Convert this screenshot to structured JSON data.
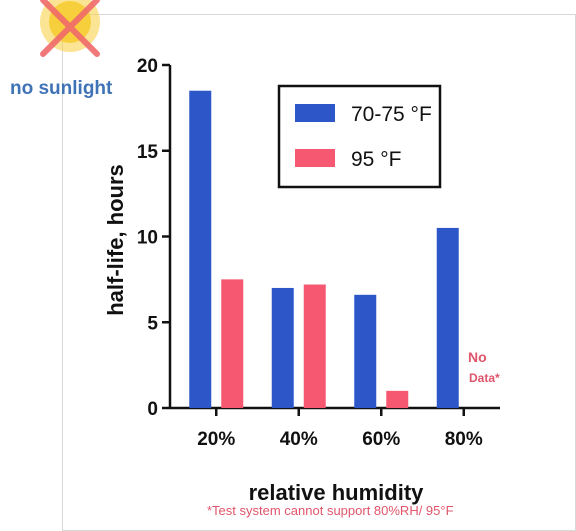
{
  "colors": {
    "series1": "#2d56c9",
    "series2": "#f55870",
    "accent_red": "#e0556b",
    "sun_yellow": "#f7cf3c",
    "no_sun_blue": "#3f73b6"
  },
  "icon": "no-sunlight-icon",
  "no_sunlight_label": "no sunlight",
  "footnote": "*Test system cannot support 80%RH/ 95°F",
  "chart_data": {
    "type": "bar",
    "categories": [
      "20%",
      "40%",
      "60%",
      "80%"
    ],
    "series": [
      {
        "name": "70-75 °F",
        "values": [
          18.5,
          7.0,
          6.6,
          10.5
        ]
      },
      {
        "name": "95 °F",
        "values": [
          7.5,
          7.2,
          1.0,
          null
        ]
      }
    ],
    "xlabel": "relative humidity",
    "ylabel": "half-life, hours",
    "ylim": [
      0,
      20
    ],
    "yticks": [
      0,
      5,
      10,
      15,
      20
    ],
    "legend_position": "top-right",
    "annotations": [
      {
        "text_lines": [
          "No",
          "Data*"
        ],
        "category": "80%",
        "series": "95 °F"
      }
    ]
  }
}
